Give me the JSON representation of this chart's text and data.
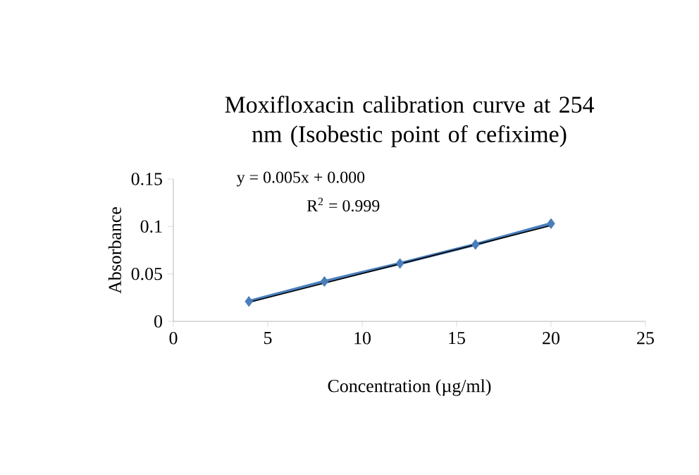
{
  "chart_data": {
    "type": "line",
    "title": "Moxifloxacin calibration curve at 254 nm (Isobestic point of cefixime)",
    "xlabel": "Concentration (µg/ml)",
    "ylabel": "Absorbance",
    "xlim": [
      0,
      25
    ],
    "xticks": [
      0,
      5,
      10,
      15,
      20,
      25
    ],
    "ylim": [
      0,
      0.15
    ],
    "yticks": [
      0,
      0.05,
      0.1,
      0.15
    ],
    "marker": "diamond",
    "line_style": "solid",
    "series": [
      {
        "color": "#4a7ebb",
        "x": [
          4,
          8,
          12,
          16,
          20
        ],
        "values": [
          0.021,
          0.042,
          0.061,
          0.081,
          0.103
        ]
      },
      {
        "color": "#000000",
        "marker": "none",
        "x": [
          4,
          20
        ],
        "values": [
          0.02,
          0.101
        ]
      }
    ],
    "annotations": [
      "y = 0.005x + 0.000",
      "R$^{2}$ = 0.999"
    ]
  }
}
